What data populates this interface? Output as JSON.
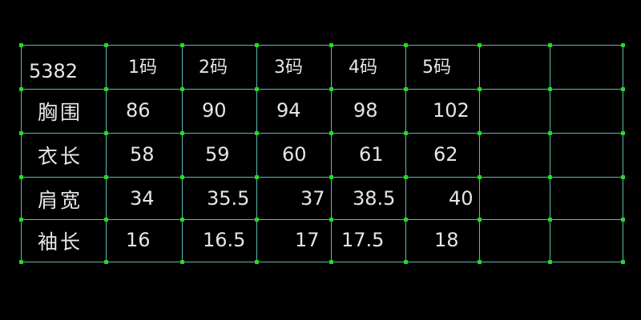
{
  "colors": {
    "background": "#000000",
    "grid": "#5fb8b0",
    "node": "#22dd22",
    "text": "#e6e6e6"
  },
  "table": {
    "corner": "5382",
    "sizes": [
      "1码",
      "2码",
      "3码",
      "4码",
      "5码"
    ],
    "rows": [
      {
        "label": "胸围",
        "values": [
          "86",
          "90",
          "94",
          "98",
          "102"
        ]
      },
      {
        "label": "衣长",
        "values": [
          "58",
          "59",
          "60",
          "61",
          "62"
        ]
      },
      {
        "label": "肩宽",
        "values": [
          "34",
          "35.5",
          "37",
          "38.5",
          "40"
        ]
      },
      {
        "label": "袖长",
        "values": [
          "16",
          "16.5",
          "17",
          "17.5",
          "18"
        ]
      }
    ]
  }
}
